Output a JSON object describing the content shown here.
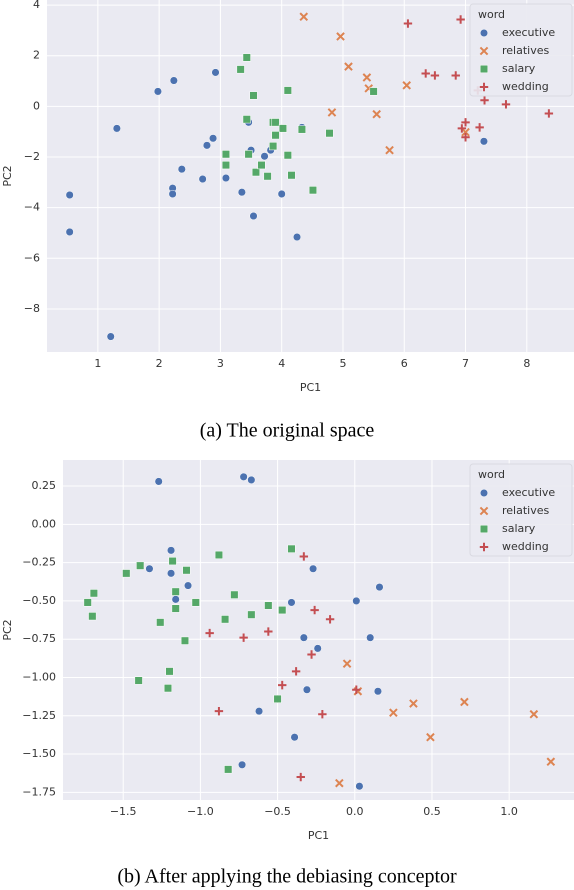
{
  "chart_data": [
    {
      "type": "scatter",
      "caption": "(a) The original space",
      "x_label": "PC1",
      "y_label": "PC2",
      "legend_title": "word",
      "legend": "upper right",
      "grid": true,
      "xlim": [
        0.17,
        8.77
      ],
      "ylim": [
        -9.7,
        4.2
      ],
      "xticks": [
        1,
        2,
        3,
        4,
        5,
        6,
        7,
        8
      ],
      "yticks": [
        4,
        2,
        0,
        {
          "value": -2,
          "label": "−2"
        },
        {
          "value": -4,
          "label": "−4"
        },
        {
          "value": -6,
          "label": "−6"
        },
        {
          "value": -8,
          "label": "−8"
        }
      ],
      "series": [
        {
          "name": "executive",
          "color": "#4c72b0",
          "marker": "circle",
          "x": [
            0.54,
            0.54,
            1.31,
            1.98,
            2.24,
            2.92,
            1.21,
            2.22,
            2.22,
            2.37,
            2.71,
            2.78,
            2.88,
            3.09,
            3.35,
            3.46,
            3.5,
            3.54,
            3.72,
            3.82,
            4.0,
            4.25,
            4.33,
            7.3
          ],
          "y": [
            -3.5,
            -4.96,
            -0.87,
            0.59,
            1.02,
            1.34,
            -9.09,
            -3.23,
            -3.46,
            -2.48,
            -2.87,
            -1.54,
            -1.26,
            -2.83,
            -3.39,
            -0.63,
            -1.73,
            -4.33,
            -1.97,
            -1.73,
            -3.46,
            -5.16,
            -0.83,
            -1.38
          ]
        },
        {
          "name": "relatives",
          "color": "#dd8452",
          "marker": "x",
          "x": [
            4.36,
            4.96,
            5.09,
            5.39,
            5.42,
            5.55,
            4.82,
            5.76,
            6.04,
            7.0
          ],
          "y": [
            3.54,
            2.76,
            1.57,
            1.14,
            0.71,
            -0.31,
            -0.24,
            -1.73,
            0.83,
            -1.02
          ]
        },
        {
          "name": "salary",
          "color": "#55a868",
          "marker": "square",
          "x": [
            3.43,
            3.33,
            3.54,
            4.1,
            3.43,
            3.86,
            3.9,
            4.02,
            4.33,
            4.78,
            5.5,
            3.09,
            3.09,
            3.46,
            3.58,
            3.67,
            3.86,
            4.1,
            4.16,
            3.77,
            4.51,
            3.9
          ],
          "y": [
            1.93,
            1.46,
            0.43,
            0.63,
            -0.51,
            -0.63,
            -0.63,
            -0.87,
            -0.91,
            -1.06,
            0.59,
            -1.89,
            -2.32,
            -1.89,
            -2.6,
            -2.32,
            -1.57,
            -1.93,
            -2.72,
            -2.76,
            -3.31,
            -1.14
          ]
        },
        {
          "name": "wedding",
          "color": "#c44e52",
          "marker": "plus",
          "x": [
            6.06,
            6.92,
            6.35,
            6.5,
            6.84,
            7.2,
            7.31,
            7.66,
            8.36,
            7.0,
            6.94,
            7.0,
            7.23
          ],
          "y": [
            3.27,
            3.43,
            1.3,
            1.22,
            1.22,
            0.63,
            0.24,
            0.08,
            -0.28,
            -0.63,
            -0.87,
            -1.22,
            -0.83
          ]
        }
      ]
    },
    {
      "type": "scatter",
      "caption": "(b) After applying the debiasing conceptor",
      "x_label": "PC1",
      "y_label": "PC2",
      "legend_title": "word",
      "legend": "upper right",
      "grid": true,
      "xlim": [
        -1.89,
        1.42
      ],
      "ylim": [
        -1.8,
        0.42
      ],
      "xticks": [
        {
          "value": -1.5,
          "label": "−1.5"
        },
        {
          "value": -1.0,
          "label": "−1.0"
        },
        {
          "value": -0.5,
          "label": "−0.5"
        },
        {
          "value": 0,
          "label": "0.0"
        },
        0.5,
        {
          "value": 1,
          "label": "1.0"
        }
      ],
      "yticks": [
        0.25,
        {
          "value": 0,
          "label": "0.00"
        },
        {
          "value": -0.25,
          "label": "−0.25"
        },
        {
          "value": -0.5,
          "label": "−0.50"
        },
        {
          "value": -0.75,
          "label": "−0.75"
        },
        {
          "value": -1.0,
          "label": "−1.00"
        },
        {
          "value": -1.25,
          "label": "−1.25"
        },
        {
          "value": -1.5,
          "label": "−1.50"
        },
        {
          "value": -1.75,
          "label": "−1.75"
        }
      ],
      "series": [
        {
          "name": "executive",
          "color": "#4c72b0",
          "marker": "circle",
          "x": [
            -1.27,
            -0.72,
            -0.67,
            -1.33,
            -1.19,
            -1.19,
            -1.08,
            -1.16,
            -0.27,
            -0.41,
            0.01,
            0.16,
            -0.33,
            0.1,
            -0.24,
            -0.31,
            0.15,
            -0.62,
            -0.39,
            -0.73,
            0.03
          ],
          "y": [
            0.28,
            0.31,
            0.29,
            -0.29,
            -0.17,
            -0.32,
            -0.4,
            -0.49,
            -0.29,
            -0.51,
            -0.5,
            -0.41,
            -0.74,
            -0.74,
            -0.81,
            -1.08,
            -1.09,
            -1.22,
            -1.39,
            -1.57,
            -1.71
          ]
        },
        {
          "name": "relatives",
          "color": "#dd8452",
          "marker": "x",
          "x": [
            -0.05,
            0.02,
            0.25,
            0.38,
            0.71,
            0.49,
            1.16,
            1.27,
            -0.1
          ],
          "y": [
            -0.91,
            -1.09,
            -1.23,
            -1.17,
            -1.16,
            -1.39,
            -1.24,
            -1.55,
            -1.69
          ]
        },
        {
          "name": "salary",
          "color": "#55a868",
          "marker": "square",
          "x": [
            -0.41,
            -0.88,
            -1.18,
            -1.39,
            -1.48,
            -1.69,
            -1.73,
            -1.7,
            -1.09,
            -1.16,
            -1.16,
            -1.03,
            -1.26,
            -1.1,
            -0.78,
            -0.84,
            -0.67,
            -0.56,
            -0.47,
            -1.2,
            -1.4,
            -1.21,
            -0.5,
            -0.82
          ],
          "y": [
            -0.16,
            -0.2,
            -0.24,
            -0.27,
            -0.32,
            -0.45,
            -0.51,
            -0.6,
            -0.3,
            -0.44,
            -0.55,
            -0.51,
            -0.64,
            -0.76,
            -0.46,
            -0.62,
            -0.59,
            -0.53,
            -0.56,
            -0.96,
            -1.02,
            -1.07,
            -1.14,
            -1.6
          ]
        },
        {
          "name": "wedding",
          "color": "#c44e52",
          "marker": "plus",
          "x": [
            -0.33,
            -0.26,
            -0.16,
            -0.94,
            -0.72,
            -0.56,
            -0.38,
            -0.28,
            -0.47,
            0.01,
            -0.21,
            -0.88,
            -0.35
          ],
          "y": [
            -0.21,
            -0.56,
            -0.62,
            -0.71,
            -0.74,
            -0.7,
            -0.96,
            -0.85,
            -1.05,
            -1.08,
            -1.24,
            -1.22,
            -1.65
          ]
        }
      ]
    }
  ]
}
